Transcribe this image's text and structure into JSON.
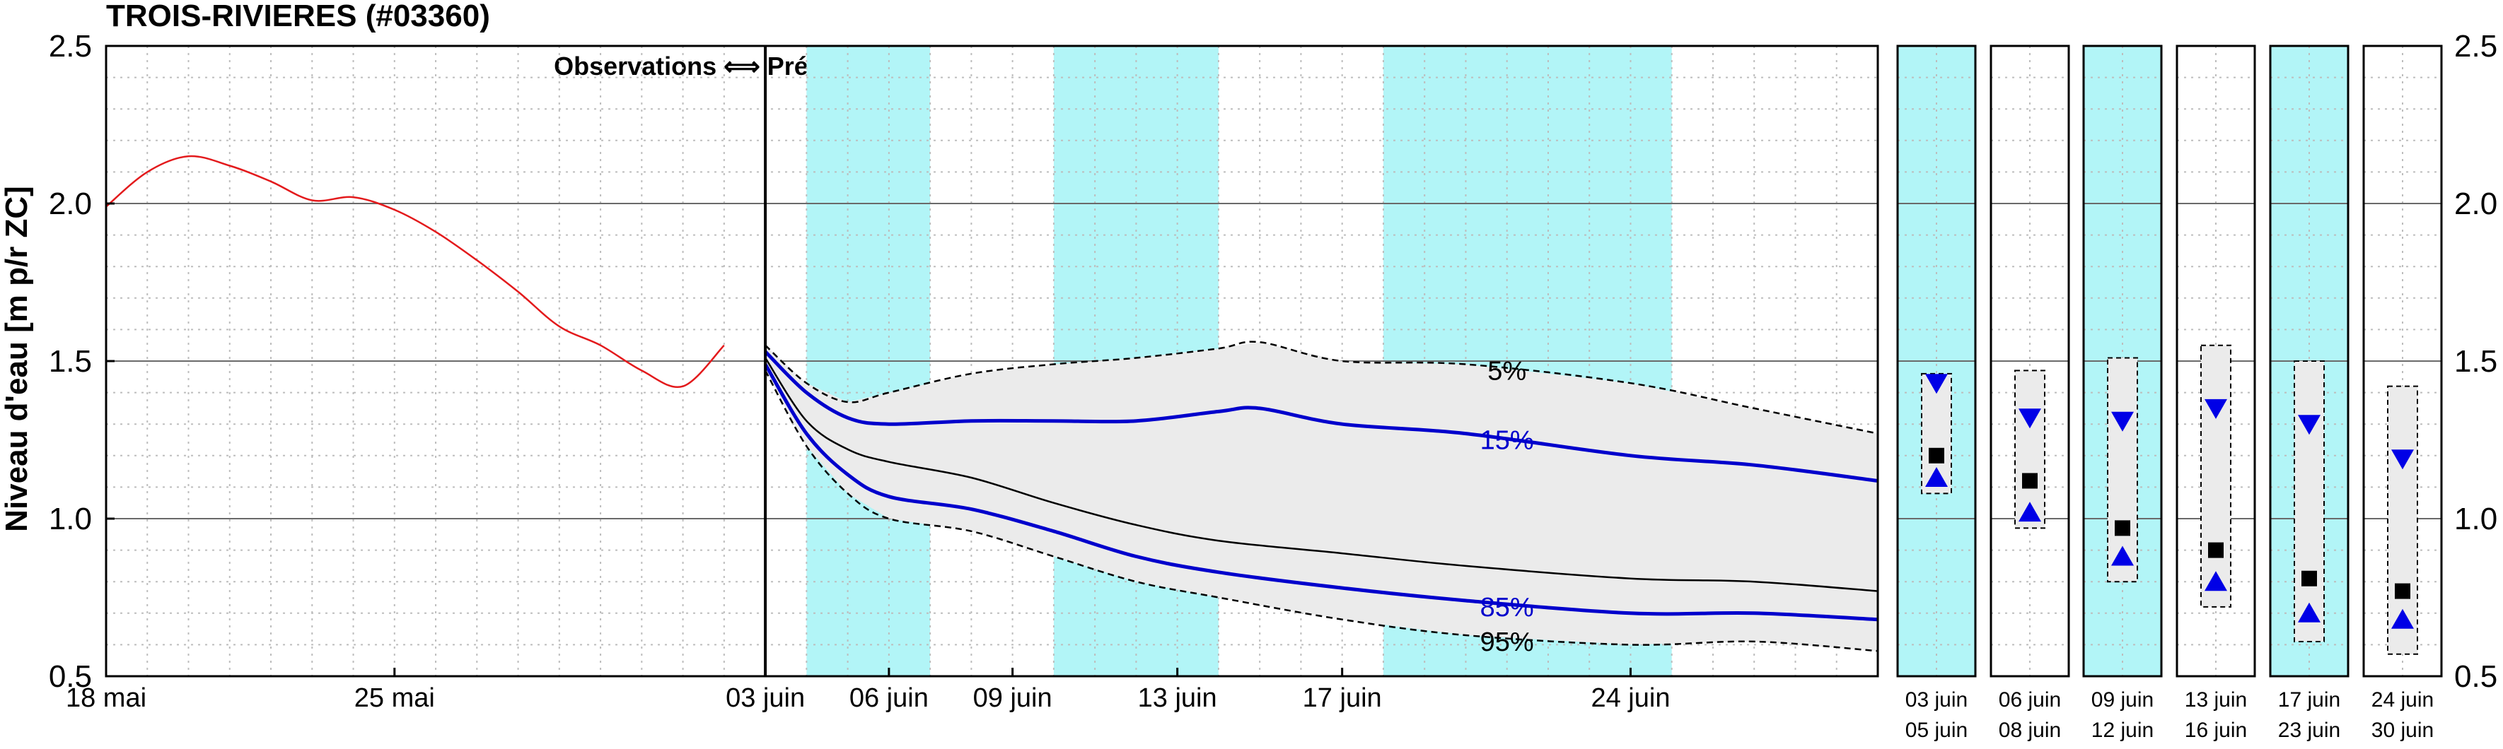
{
  "chart_data": {
    "type": "line",
    "title": "TROIS-RIVIERES (#03360)",
    "ylabel": "Niveau d'eau [m p/r ZC]",
    "ylim": [
      0.5,
      2.5
    ],
    "yticks": [
      "0.5",
      "1.0",
      "1.5",
      "2.0",
      "2.5"
    ],
    "grid": true,
    "annotation": "Observations ⟺ Prévisions",
    "main_panel": {
      "xlim": [
        "2025-05-18",
        "2025-06-30"
      ],
      "obs_end": "2025-06-03",
      "x_ticks": [
        {
          "date": "2025-05-18",
          "label": "18 mai"
        },
        {
          "date": "2025-05-25",
          "label": "25 mai"
        },
        {
          "date": "2025-06-03",
          "label": "03 juin"
        },
        {
          "date": "2025-06-06",
          "label": "06 juin"
        },
        {
          "date": "2025-06-09",
          "label": "09 juin"
        },
        {
          "date": "2025-06-13",
          "label": "13 juin"
        },
        {
          "date": "2025-06-17",
          "label": "17 juin"
        },
        {
          "date": "2025-06-24",
          "label": "24 juin"
        }
      ],
      "shaded_periods": [
        [
          "2025-06-04",
          "2025-06-07"
        ],
        [
          "2025-06-10",
          "2025-06-14"
        ],
        [
          "2025-06-18",
          "2025-06-25"
        ]
      ],
      "series": [
        {
          "name": "Observations",
          "color": "#e31a1c",
          "x": [
            "2025-05-18",
            "2025-05-19",
            "2025-05-20",
            "2025-05-21",
            "2025-05-22",
            "2025-05-23",
            "2025-05-24",
            "2025-05-25",
            "2025-05-26",
            "2025-05-27",
            "2025-05-28",
            "2025-05-29",
            "2025-05-30",
            "2025-05-31",
            "2025-06-01",
            "2025-06-02"
          ],
          "y": [
            1.99,
            2.1,
            2.15,
            2.12,
            2.07,
            2.01,
            2.02,
            1.98,
            1.91,
            1.82,
            1.72,
            1.61,
            1.55,
            1.47,
            1.42,
            1.55
          ]
        },
        {
          "name": "5%",
          "style": "dashed",
          "color": "#000000",
          "x": [
            "2025-06-03",
            "2025-06-04",
            "2025-06-05",
            "2025-06-06",
            "2025-06-08",
            "2025-06-10",
            "2025-06-12",
            "2025-06-14",
            "2025-06-15",
            "2025-06-17",
            "2025-06-20",
            "2025-06-24",
            "2025-06-27",
            "2025-06-30"
          ],
          "y": [
            1.55,
            1.43,
            1.37,
            1.4,
            1.46,
            1.49,
            1.51,
            1.54,
            1.56,
            1.5,
            1.49,
            1.43,
            1.35,
            1.27
          ]
        },
        {
          "name": "15%",
          "color": "#0000cc",
          "x": [
            "2025-06-03",
            "2025-06-04",
            "2025-06-05",
            "2025-06-06",
            "2025-06-08",
            "2025-06-10",
            "2025-06-12",
            "2025-06-14",
            "2025-06-15",
            "2025-06-17",
            "2025-06-20",
            "2025-06-24",
            "2025-06-27",
            "2025-06-30"
          ],
          "y": [
            1.53,
            1.4,
            1.32,
            1.3,
            1.31,
            1.31,
            1.31,
            1.34,
            1.35,
            1.3,
            1.27,
            1.2,
            1.17,
            1.12
          ]
        },
        {
          "name": "50%",
          "color": "#000000",
          "x": [
            "2025-06-03",
            "2025-06-04",
            "2025-06-05",
            "2025-06-06",
            "2025-06-08",
            "2025-06-10",
            "2025-06-12",
            "2025-06-14",
            "2025-06-17",
            "2025-06-20",
            "2025-06-24",
            "2025-06-27",
            "2025-06-30"
          ],
          "y": [
            1.51,
            1.31,
            1.22,
            1.18,
            1.13,
            1.05,
            0.98,
            0.93,
            0.89,
            0.85,
            0.81,
            0.8,
            0.77
          ]
        },
        {
          "name": "85%",
          "color": "#0000cc",
          "x": [
            "2025-06-03",
            "2025-06-04",
            "2025-06-05",
            "2025-06-06",
            "2025-06-08",
            "2025-06-10",
            "2025-06-12",
            "2025-06-14",
            "2025-06-17",
            "2025-06-20",
            "2025-06-24",
            "2025-06-27",
            "2025-06-30"
          ],
          "y": [
            1.49,
            1.27,
            1.14,
            1.07,
            1.03,
            0.96,
            0.88,
            0.83,
            0.78,
            0.74,
            0.7,
            0.7,
            0.68
          ]
        },
        {
          "name": "95%",
          "style": "dashed",
          "color": "#000000",
          "x": [
            "2025-06-03",
            "2025-06-04",
            "2025-06-05",
            "2025-06-06",
            "2025-06-08",
            "2025-06-10",
            "2025-06-12",
            "2025-06-14",
            "2025-06-17",
            "2025-06-20",
            "2025-06-24",
            "2025-06-27",
            "2025-06-30"
          ],
          "y": [
            1.47,
            1.23,
            1.08,
            1.0,
            0.96,
            0.88,
            0.8,
            0.75,
            0.68,
            0.63,
            0.6,
            0.61,
            0.58
          ]
        }
      ],
      "labels": [
        {
          "text": "5%",
          "x": "2025-06-21",
          "y": 1.47,
          "color": "#000000"
        },
        {
          "text": "15%",
          "x": "2025-06-21",
          "y": 1.25,
          "color": "#0000cc"
        },
        {
          "text": "85%",
          "x": "2025-06-21",
          "y": 0.72,
          "color": "#0000cc"
        },
        {
          "text": "95%",
          "x": "2025-06-21",
          "y": 0.61,
          "color": "#000000"
        }
      ]
    },
    "period_panels": [
      {
        "label_top": "03 juin",
        "label_bottom": "05 juin",
        "shaded": true,
        "box_top": 1.46,
        "box_bottom": 1.08,
        "median": 1.2,
        "high": 1.43,
        "low": 1.13
      },
      {
        "label_top": "06 juin",
        "label_bottom": "08 juin",
        "shaded": false,
        "box_top": 1.47,
        "box_bottom": 0.97,
        "median": 1.12,
        "high": 1.32,
        "low": 1.02
      },
      {
        "label_top": "09 juin",
        "label_bottom": "12 juin",
        "shaded": true,
        "box_top": 1.51,
        "box_bottom": 0.8,
        "median": 0.97,
        "high": 1.31,
        "low": 0.88
      },
      {
        "label_top": "13 juin",
        "label_bottom": "16 juin",
        "shaded": false,
        "box_top": 1.55,
        "box_bottom": 0.72,
        "median": 0.9,
        "high": 1.35,
        "low": 0.8
      },
      {
        "label_top": "17 juin",
        "label_bottom": "23 juin",
        "shaded": true,
        "box_top": 1.5,
        "box_bottom": 0.61,
        "median": 0.81,
        "high": 1.3,
        "low": 0.7
      },
      {
        "label_top": "24 juin",
        "label_bottom": "30 juin",
        "shaded": false,
        "box_top": 1.42,
        "box_bottom": 0.57,
        "median": 0.77,
        "high": 1.19,
        "low": 0.68
      }
    ],
    "colors": {
      "shade": "#b2f5f7",
      "band": "#ebebeb",
      "observations": "#e31a1c",
      "percentile_blue": "#0000cc",
      "marker_blue": "#0000e6"
    }
  }
}
